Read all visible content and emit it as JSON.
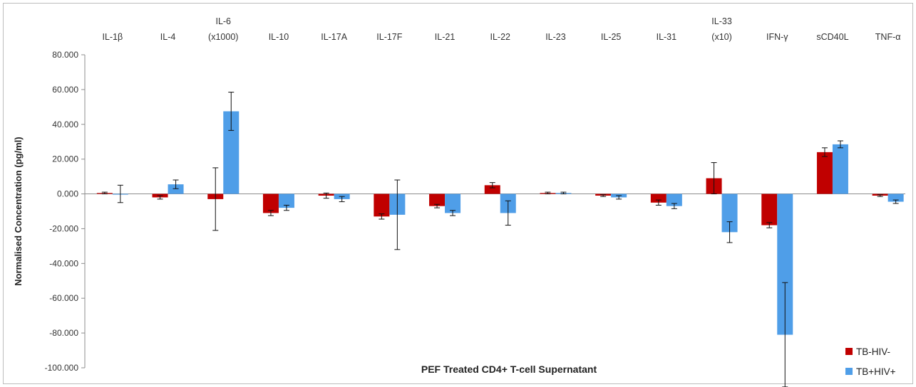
{
  "chart_data": {
    "type": "bar",
    "title": "",
    "xlabel": "PEF Treated CD4+ T-cell Supernatant",
    "ylabel": "Normalised Concentration (pg/ml)",
    "ylim": [
      -100,
      80
    ],
    "yticks": [
      80,
      60,
      40,
      20,
      0,
      -20,
      -40,
      -60,
      -80,
      -100
    ],
    "ytick_labels": [
      "80.000",
      "60.000",
      "40.000",
      "20.000",
      "0.000",
      "-20.000",
      "-40.000",
      "-60.000",
      "-80.000",
      "-100.000"
    ],
    "categories": [
      [
        "IL-1β"
      ],
      [
        "IL-4"
      ],
      [
        "IL-6",
        "(x1000)"
      ],
      [
        "IL-10"
      ],
      [
        "IL-17A"
      ],
      [
        "IL-17F"
      ],
      [
        "IL-21"
      ],
      [
        "IL-22"
      ],
      [
        "IL-23"
      ],
      [
        "IL-25"
      ],
      [
        "IL-31"
      ],
      [
        "IL-33",
        "(x10)"
      ],
      [
        "IFN-γ"
      ],
      [
        "sCD40L"
      ],
      [
        "TNF-α"
      ]
    ],
    "series": [
      {
        "name": "TB-HIV-",
        "color": "#c00000",
        "values": [
          0.5,
          -2,
          -3,
          -11,
          -1,
          -13,
          -7,
          5,
          0.5,
          -1,
          -5,
          9,
          -18,
          24,
          -1
        ],
        "errors": [
          0.5,
          1,
          18,
          1.5,
          1.5,
          1.5,
          1,
          1.5,
          0.5,
          0.5,
          1.5,
          9,
          1.5,
          2.5,
          0.5
        ]
      },
      {
        "name": "TB+HIV+",
        "color": "#4f9ee8",
        "values": [
          0,
          5.5,
          47.5,
          -8,
          -3,
          -12,
          -11,
          -11,
          0.5,
          -2,
          -7,
          -22,
          -81,
          28.5,
          -4.5
        ],
        "errors": [
          5,
          2.5,
          11,
          1.5,
          1.5,
          20,
          1.5,
          7,
          0.5,
          1,
          1.5,
          6,
          30,
          2,
          1
        ]
      }
    ],
    "legend": "bottom-right",
    "category_labels_position": "top",
    "grid": false
  }
}
